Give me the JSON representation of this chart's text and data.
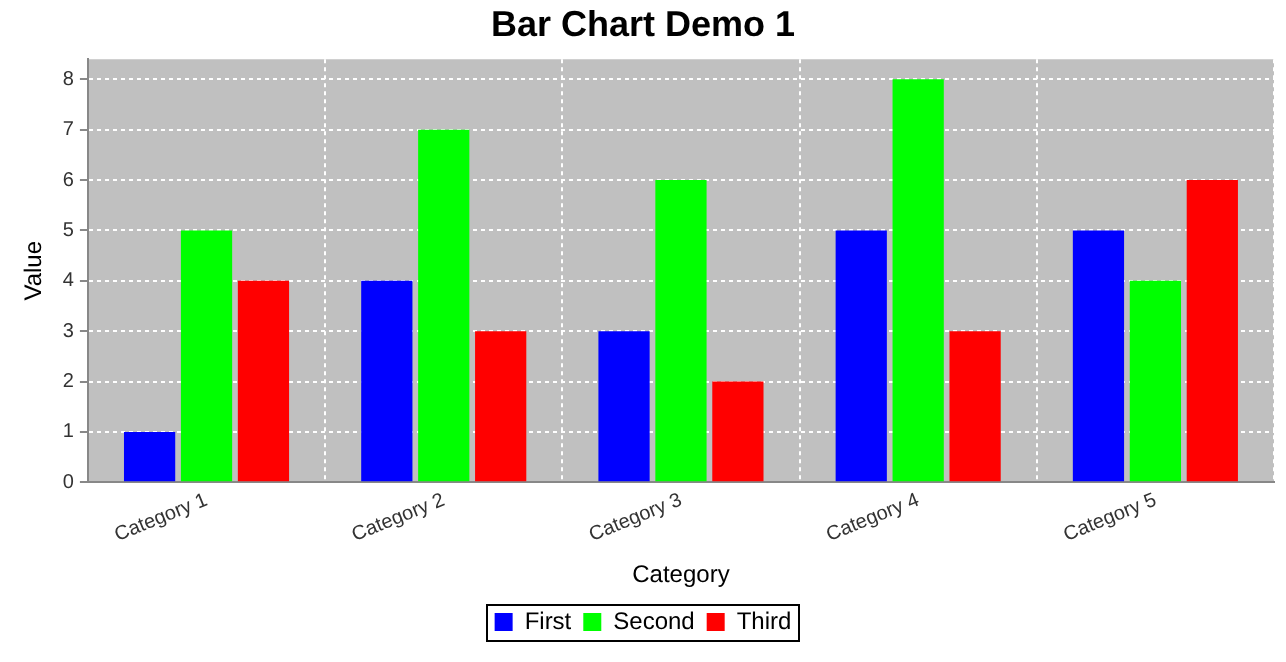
{
  "chart_data": {
    "type": "bar",
    "title": "Bar Chart Demo 1",
    "xlabel": "Category",
    "ylabel": "Value",
    "categories": [
      "Category 1",
      "Category 2",
      "Category 3",
      "Category 4",
      "Category 5"
    ],
    "series": [
      {
        "name": "First",
        "color": "#0000ff",
        "values": [
          1,
          4,
          3,
          5,
          5
        ]
      },
      {
        "name": "Second",
        "color": "#00ff00",
        "values": [
          5,
          7,
          6,
          8,
          4
        ]
      },
      {
        "name": "Third",
        "color": "#ff0000",
        "values": [
          4,
          3,
          2,
          3,
          6
        ]
      }
    ],
    "ylim": [
      0,
      8.4
    ],
    "yticks": [
      0,
      1,
      2,
      3,
      4,
      5,
      6,
      7,
      8
    ],
    "grid": true,
    "legend": "bottom"
  }
}
